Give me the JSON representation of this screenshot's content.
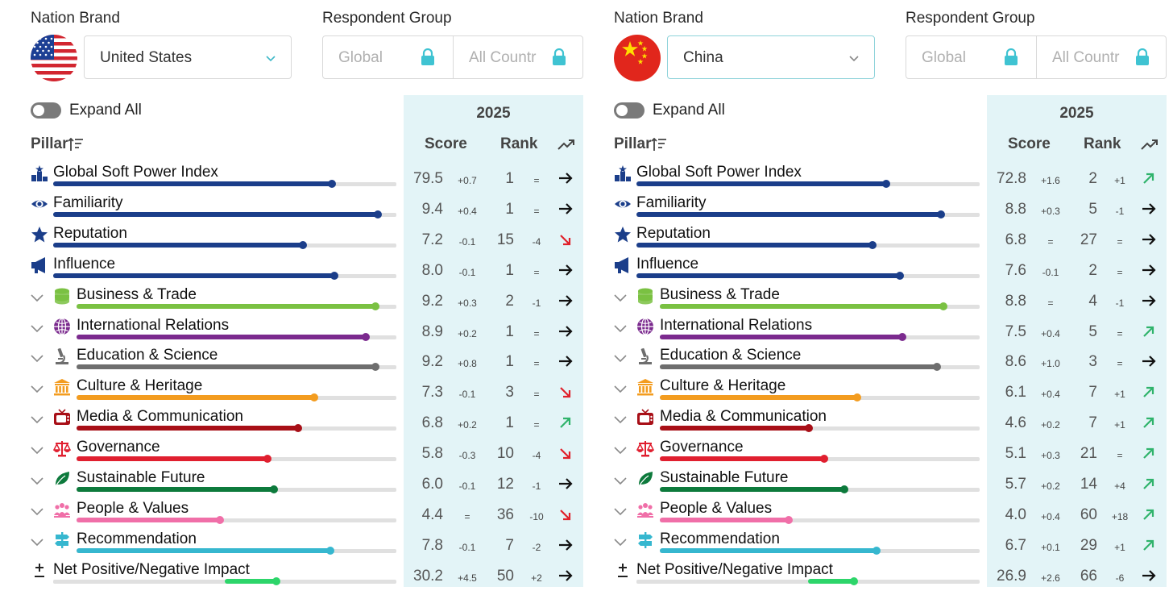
{
  "labels": {
    "nation_brand": "Nation Brand",
    "respondent_group": "Respondent Group",
    "expand_all": "Expand All",
    "pillar": "Pillar",
    "year": "2025",
    "score": "Score",
    "rank": "Rank"
  },
  "colors": {
    "gspi": "#1b3e8a",
    "familiarity": "#1b3e8a",
    "reputation": "#1b3e8a",
    "influence": "#1b3e8a",
    "business": "#7ac142",
    "international": "#7b2a8e",
    "education": "#6e6e6e",
    "culture": "#f39c1f",
    "media": "#a80f17",
    "governance": "#e01f2f",
    "sustainable": "#0d7a3c",
    "people": "#f06fa8",
    "recommendation": "#36b7cf",
    "netimpact": "#2dd56a",
    "trend_up": "#2fb36b",
    "trend_down": "#e0202a",
    "trend_flat": "#111111",
    "highlight_col": "#e3f4f7"
  },
  "panels": [
    {
      "nation": "United States",
      "flag_icon": "us-flag-icon",
      "respondent": [
        "Global",
        "All Countr"
      ],
      "rows": [
        {
          "id": "gspi",
          "name": "Global Soft Power Index",
          "icon": "podium-icon",
          "expandable": false,
          "level": 0.813,
          "score": "79.5",
          "sdelta": "+0.7",
          "rank": "1",
          "rdelta": "=",
          "trend": "flat"
        },
        {
          "id": "familiarity",
          "name": "Familiarity",
          "icon": "eye-icon",
          "expandable": false,
          "level": 0.947,
          "score": "9.4",
          "sdelta": "+0.4",
          "rank": "1",
          "rdelta": "=",
          "trend": "flat"
        },
        {
          "id": "reputation",
          "name": "Reputation",
          "icon": "star-icon",
          "expandable": false,
          "level": 0.727,
          "score": "7.2",
          "sdelta": "-0.1",
          "rank": "15",
          "rdelta": "-4",
          "trend": "down"
        },
        {
          "id": "influence",
          "name": "Influence",
          "icon": "megaphone-icon",
          "expandable": false,
          "level": 0.82,
          "score": "8.0",
          "sdelta": "-0.1",
          "rank": "1",
          "rdelta": "=",
          "trend": "flat"
        },
        {
          "id": "business",
          "name": "Business & Trade",
          "icon": "coins-icon",
          "expandable": true,
          "level": 0.934,
          "score": "9.2",
          "sdelta": "+0.3",
          "rank": "2",
          "rdelta": "-1",
          "trend": "flat"
        },
        {
          "id": "international",
          "name": "International Relations",
          "icon": "globe-icon",
          "expandable": true,
          "level": 0.904,
          "score": "8.9",
          "sdelta": "+0.2",
          "rank": "1",
          "rdelta": "=",
          "trend": "flat"
        },
        {
          "id": "education",
          "name": "Education & Science",
          "icon": "microscope-icon",
          "expandable": true,
          "level": 0.934,
          "score": "9.2",
          "sdelta": "+0.8",
          "rank": "1",
          "rdelta": "=",
          "trend": "flat"
        },
        {
          "id": "culture",
          "name": "Culture & Heritage",
          "icon": "museum-icon",
          "expandable": true,
          "level": 0.742,
          "score": "7.3",
          "sdelta": "-0.1",
          "rank": "3",
          "rdelta": "=",
          "trend": "down"
        },
        {
          "id": "media",
          "name": "Media & Communication",
          "icon": "tv-icon",
          "expandable": true,
          "level": 0.692,
          "score": "6.8",
          "sdelta": "+0.2",
          "rank": "1",
          "rdelta": "=",
          "trend": "up"
        },
        {
          "id": "governance",
          "name": "Governance",
          "icon": "scales-icon",
          "expandable": true,
          "level": 0.596,
          "score": "5.8",
          "sdelta": "-0.3",
          "rank": "10",
          "rdelta": "-4",
          "trend": "down"
        },
        {
          "id": "sustainable",
          "name": "Sustainable Future",
          "icon": "leaf-icon",
          "expandable": true,
          "level": 0.616,
          "score": "6.0",
          "sdelta": "-0.1",
          "rank": "12",
          "rdelta": "-1",
          "trend": "flat"
        },
        {
          "id": "people",
          "name": "People & Values",
          "icon": "people-icon",
          "expandable": true,
          "level": 0.449,
          "score": "4.4",
          "sdelta": "=",
          "rank": "36",
          "rdelta": "-10",
          "trend": "down"
        },
        {
          "id": "recommendation",
          "name": "Recommendation",
          "icon": "signpost-icon",
          "expandable": true,
          "level": 0.793,
          "score": "7.8",
          "sdelta": "-0.1",
          "rank": "7",
          "rdelta": "-2",
          "trend": "flat"
        },
        {
          "id": "netimpact",
          "name": "Net Positive/Negative Impact",
          "icon": "plus-minus-icon",
          "expandable": false,
          "level": 0.151,
          "score": "30.2",
          "sdelta": "+4.5",
          "rank": "50",
          "rdelta": "+2",
          "trend": "flat"
        }
      ]
    },
    {
      "nation": "China",
      "flag_icon": "china-flag-icon",
      "respondent": [
        "Global",
        "All Countr"
      ],
      "rows": [
        {
          "id": "gspi",
          "name": "Global Soft Power Index",
          "icon": "podium-icon",
          "expandable": false,
          "level": 0.728,
          "score": "72.8",
          "sdelta": "+1.6",
          "rank": "2",
          "rdelta": "+1",
          "trend": "up"
        },
        {
          "id": "familiarity",
          "name": "Familiarity",
          "icon": "eye-icon",
          "expandable": false,
          "level": 0.888,
          "score": "8.8",
          "sdelta": "+0.3",
          "rank": "5",
          "rdelta": "-1",
          "trend": "flat"
        },
        {
          "id": "reputation",
          "name": "Reputation",
          "icon": "star-icon",
          "expandable": false,
          "level": 0.687,
          "score": "6.8",
          "sdelta": "=",
          "rank": "27",
          "rdelta": "=",
          "trend": "flat"
        },
        {
          "id": "influence",
          "name": "Influence",
          "icon": "megaphone-icon",
          "expandable": false,
          "level": 0.768,
          "score": "7.6",
          "sdelta": "-0.1",
          "rank": "2",
          "rdelta": "=",
          "trend": "flat"
        },
        {
          "id": "business",
          "name": "Business & Trade",
          "icon": "coins-icon",
          "expandable": true,
          "level": 0.886,
          "score": "8.8",
          "sdelta": "=",
          "rank": "4",
          "rdelta": "-1",
          "trend": "flat"
        },
        {
          "id": "international",
          "name": "International Relations",
          "icon": "globe-icon",
          "expandable": true,
          "level": 0.757,
          "score": "7.5",
          "sdelta": "+0.4",
          "rank": "5",
          "rdelta": "=",
          "trend": "up"
        },
        {
          "id": "education",
          "name": "Education & Science",
          "icon": "microscope-icon",
          "expandable": true,
          "level": 0.866,
          "score": "8.6",
          "sdelta": "+1.0",
          "rank": "3",
          "rdelta": "=",
          "trend": "flat"
        },
        {
          "id": "culture",
          "name": "Culture & Heritage",
          "icon": "museum-icon",
          "expandable": true,
          "level": 0.616,
          "score": "6.1",
          "sdelta": "+0.4",
          "rank": "7",
          "rdelta": "+1",
          "trend": "up"
        },
        {
          "id": "media",
          "name": "Media & Communication",
          "icon": "tv-icon",
          "expandable": true,
          "level": 0.465,
          "score": "4.6",
          "sdelta": "+0.2",
          "rank": "7",
          "rdelta": "+1",
          "trend": "up"
        },
        {
          "id": "governance",
          "name": "Governance",
          "icon": "scales-icon",
          "expandable": true,
          "level": 0.515,
          "score": "5.1",
          "sdelta": "+0.3",
          "rank": "21",
          "rdelta": "=",
          "trend": "up"
        },
        {
          "id": "sustainable",
          "name": "Sustainable Future",
          "icon": "leaf-icon",
          "expandable": true,
          "level": 0.576,
          "score": "5.7",
          "sdelta": "+0.2",
          "rank": "14",
          "rdelta": "+4",
          "trend": "up"
        },
        {
          "id": "people",
          "name": "People & Values",
          "icon": "people-icon",
          "expandable": true,
          "level": 0.404,
          "score": "4.0",
          "sdelta": "+0.4",
          "rank": "60",
          "rdelta": "+18",
          "trend": "up"
        },
        {
          "id": "recommendation",
          "name": "Recommendation",
          "icon": "signpost-icon",
          "expandable": true,
          "level": 0.677,
          "score": "6.7",
          "sdelta": "+0.1",
          "rank": "29",
          "rdelta": "+1",
          "trend": "up"
        },
        {
          "id": "netimpact",
          "name": "Net Positive/Negative Impact",
          "icon": "plus-minus-icon",
          "expandable": false,
          "level": 0.134,
          "score": "26.9",
          "sdelta": "+2.6",
          "rank": "66",
          "rdelta": "-6",
          "trend": "flat"
        }
      ]
    }
  ]
}
